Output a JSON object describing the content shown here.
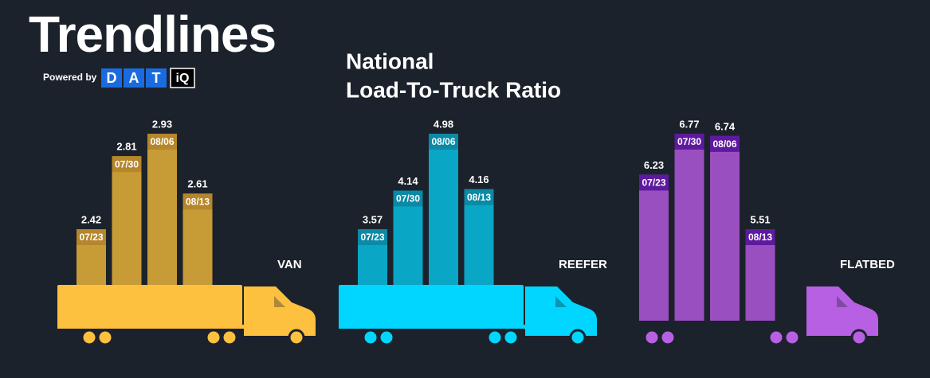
{
  "header": {
    "brand": "Trendlines",
    "powered_by": "Powered by",
    "logo_letters": [
      "D",
      "A",
      "T"
    ],
    "logo_suffix": "iQ",
    "title_line1": "National",
    "title_line2": "Load-To-Truck Ratio"
  },
  "chart_data": [
    {
      "type": "bar",
      "title": "VAN",
      "categories": [
        "07/23",
        "07/30",
        "08/06",
        "08/13"
      ],
      "values": [
        2.42,
        2.81,
        2.93,
        2.61
      ],
      "color": "#c79b35",
      "label_color": "#b5862b",
      "truck_color": "#fdc03f",
      "trailer": "van"
    },
    {
      "type": "bar",
      "title": "REEFER",
      "categories": [
        "07/23",
        "07/30",
        "08/06",
        "08/13"
      ],
      "values": [
        3.57,
        4.14,
        4.98,
        4.16
      ],
      "color": "#0aa6c5",
      "label_color": "#0a8aa6",
      "truck_color": "#00d6ff",
      "trailer": "van"
    },
    {
      "type": "bar",
      "title": "FLATBED",
      "categories": [
        "07/23",
        "07/30",
        "08/06",
        "08/13"
      ],
      "values": [
        6.23,
        6.77,
        6.74,
        5.51
      ],
      "color": "#9a4fc0",
      "label_color": "#5e1a9e",
      "truck_color": "#b760e3",
      "trailer": "flatbed"
    }
  ]
}
